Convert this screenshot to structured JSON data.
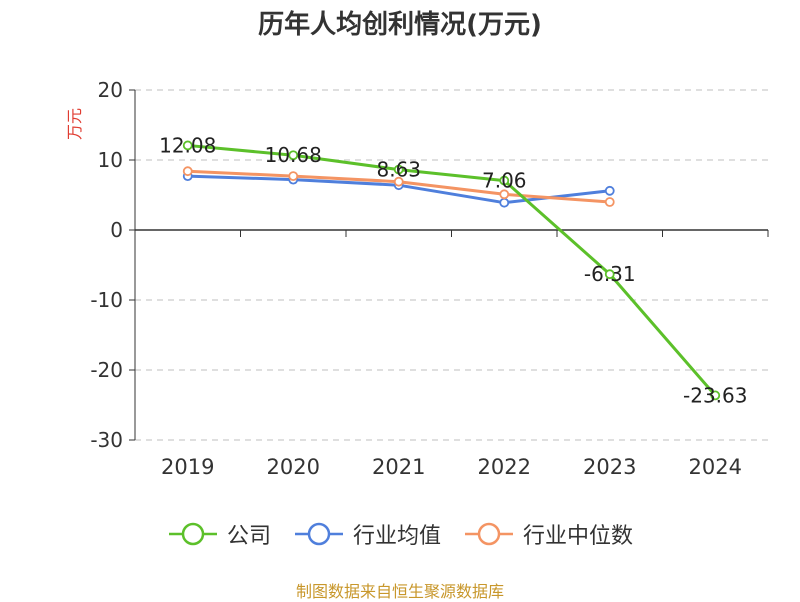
{
  "title": "历年人均创利情况(万元)",
  "source_note": "制图数据来自恒生聚源数据库",
  "chart_data": {
    "type": "line",
    "title": "历年人均创利情况(万元)",
    "ylabel": "万元",
    "xlabel": "",
    "categories": [
      "2019",
      "2020",
      "2021",
      "2022",
      "2023",
      "2024"
    ],
    "ylim": [
      -30,
      20
    ],
    "yticks": [
      20,
      10,
      0,
      -10,
      -20,
      -30
    ],
    "grid": true,
    "legend_position": "bottom",
    "series": [
      {
        "name": "公司",
        "color": "#5cc02a",
        "values": [
          12.08,
          10.68,
          8.63,
          7.06,
          -6.31,
          -23.63
        ],
        "labels": [
          "12.08",
          "10.68",
          "8.63",
          "7.06",
          "-6.31",
          "-23.63"
        ]
      },
      {
        "name": "行业均值",
        "color": "#4f7fdc",
        "values": [
          7.7,
          7.2,
          6.4,
          3.9,
          5.6,
          null
        ]
      },
      {
        "name": "行业中位数",
        "color": "#f49463",
        "values": [
          8.4,
          7.7,
          6.9,
          5.1,
          4.0,
          null
        ]
      }
    ]
  }
}
